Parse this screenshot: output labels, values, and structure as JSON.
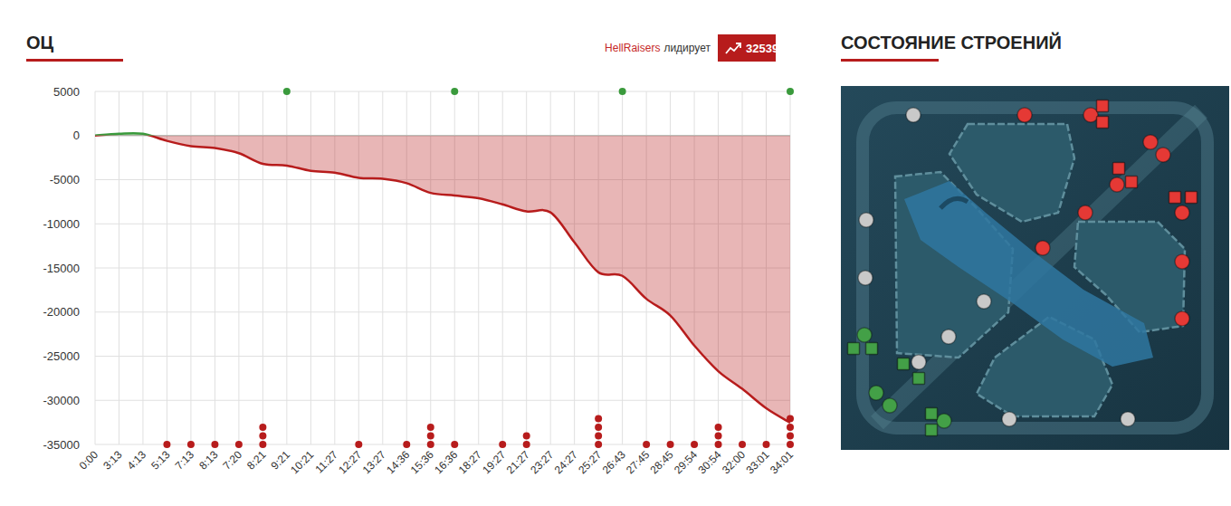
{
  "chart_data": {
    "type": "area",
    "title": "ОЦ",
    "categories": [
      "0:00",
      "3:13",
      "4:13",
      "5:13",
      "7:13",
      "8:13",
      "7:20",
      "8:21",
      "9:21",
      "10:21",
      "11:27",
      "12:27",
      "13:27",
      "14:36",
      "15:36",
      "16:36",
      "18:27",
      "19:27",
      "21:27",
      "23:27",
      "24:27",
      "25:27",
      "26:43",
      "27:45",
      "28:45",
      "29:54",
      "30:54",
      "32:00",
      "33:01",
      "34:01"
    ],
    "series": [
      {
        "type": "area",
        "color": "#b71c1c",
        "values": [
          0,
          200,
          200,
          -600,
          -1200,
          -1400,
          -2000,
          -3200,
          -3400,
          -4000,
          -4200,
          -4800,
          -4900,
          -5400,
          -6500,
          -6800,
          -7100,
          -7800,
          -8600,
          -8700,
          -12100,
          -15500,
          -15900,
          -18500,
          -20400,
          -23800,
          -26700,
          -28700,
          -30900,
          -32539
        ]
      },
      {
        "type": "dots",
        "color": "#3a9a3c",
        "values": [
          null,
          null,
          null,
          null,
          null,
          null,
          null,
          null,
          1,
          null,
          null,
          null,
          null,
          null,
          null,
          1,
          null,
          null,
          null,
          null,
          null,
          null,
          1,
          null,
          null,
          null,
          null,
          null,
          null,
          1
        ]
      },
      {
        "type": "dots",
        "color": "#b71c1c",
        "values": [
          null,
          null,
          null,
          1,
          1,
          1,
          1,
          3,
          null,
          null,
          null,
          1,
          null,
          1,
          3,
          1,
          null,
          1,
          2,
          null,
          null,
          4,
          null,
          1,
          1,
          1,
          3,
          1,
          1,
          4
        ]
      }
    ],
    "ylim": [
      -35000,
      5000
    ],
    "yticks": [
      5000,
      0,
      -5000,
      -10000,
      -15000,
      -20000,
      -25000,
      -30000,
      -35000
    ],
    "grid": true
  },
  "lead_badge": {
    "team": "HellRaisers",
    "text": "лидирует",
    "value": 32539
  },
  "buildings": {
    "title": "СОСТОЯНИЕ СТРОЕНИЙ",
    "markers": [
      {
        "shape": "circle",
        "color": "#e53935"
      },
      {
        "shape": "circle",
        "color": "#e53935"
      },
      {
        "shape": "circle",
        "color": "#e53935"
      },
      {
        "shape": "circle",
        "color": "#e53935"
      },
      {
        "shape": "circle",
        "color": "#e53935"
      },
      {
        "shape": "circle",
        "color": "#e53935"
      },
      {
        "shape": "circle",
        "color": "#e53935"
      },
      {
        "shape": "circle",
        "color": "#e53935"
      },
      {
        "shape": "circle",
        "color": "#e53935"
      },
      {
        "shape": "circle",
        "color": "#e53935"
      },
      {
        "shape": "square",
        "color": "#e53935"
      },
      {
        "shape": "square",
        "color": "#e53935"
      },
      {
        "shape": "square",
        "color": "#e53935"
      },
      {
        "shape": "square",
        "color": "#e53935"
      },
      {
        "shape": "square",
        "color": "#e53935"
      },
      {
        "shape": "square",
        "color": "#e53935"
      },
      {
        "shape": "circle",
        "color": "#43a047"
      },
      {
        "shape": "circle",
        "color": "#43a047"
      },
      {
        "shape": "circle",
        "color": "#43a047"
      },
      {
        "shape": "circle",
        "color": "#43a047"
      },
      {
        "shape": "square",
        "color": "#43a047"
      },
      {
        "shape": "square",
        "color": "#43a047"
      },
      {
        "shape": "square",
        "color": "#43a047"
      },
      {
        "shape": "square",
        "color": "#43a047"
      },
      {
        "shape": "square",
        "color": "#43a047"
      },
      {
        "shape": "square",
        "color": "#43a047"
      },
      {
        "shape": "circle",
        "color": "#c9c9c9"
      },
      {
        "shape": "circle",
        "color": "#c9c9c9"
      },
      {
        "shape": "circle",
        "color": "#c9c9c9"
      },
      {
        "shape": "circle",
        "color": "#c9c9c9"
      },
      {
        "shape": "circle",
        "color": "#c9c9c9"
      },
      {
        "shape": "circle",
        "color": "#c9c9c9"
      },
      {
        "shape": "circle",
        "color": "#c9c9c9"
      },
      {
        "shape": "circle",
        "color": "#c9c9c9"
      }
    ]
  }
}
